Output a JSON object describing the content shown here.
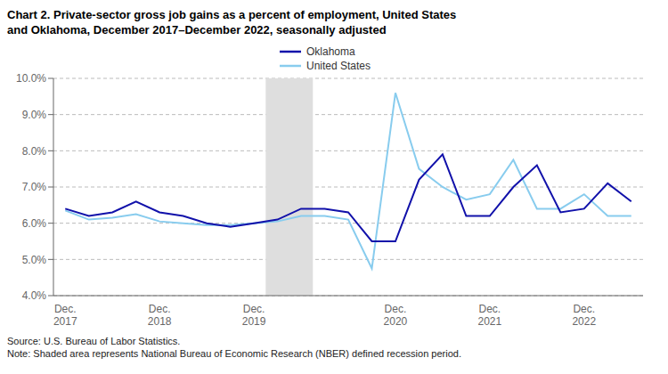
{
  "chart_data": {
    "type": "line",
    "title": "Chart 2. Private-sector gross job gains as a percent of employment, United States\nand Oklahoma, December 2017–December 2022, seasonally adjusted",
    "annotations": [
      "Source: U.S. Bureau of Labor Statistics.\nNote: Shaded area represents National Bureau of Economic Research (NBER) defined recession period."
    ],
    "categories": [
      "Dec.\n2017",
      null,
      null,
      null,
      "Dec.\n2018",
      null,
      null,
      null,
      "Dec.\n2019",
      null,
      null,
      null,
      null,
      null,
      "Dec.\n2020",
      null,
      null,
      null,
      "Dec.\n2021",
      null,
      null,
      null,
      "Dec.\n2022",
      null,
      null
    ],
    "series": [
      {
        "name": "Oklahoma",
        "color": "#1111AA",
        "values": [
          6.4,
          6.2,
          6.3,
          6.6,
          6.3,
          6.2,
          6.0,
          5.9,
          6.0,
          6.1,
          6.4,
          6.4,
          6.3,
          5.5,
          5.5,
          7.2,
          7.9,
          6.2,
          6.2,
          7.0,
          7.6,
          6.3,
          6.4,
          7.1,
          6.6
        ]
      },
      {
        "name": "United States",
        "color": "#88CCEE",
        "values": [
          6.35,
          6.1,
          6.15,
          6.25,
          6.05,
          6.0,
          5.95,
          5.95,
          6.0,
          6.05,
          6.2,
          6.2,
          6.1,
          4.75,
          9.6,
          7.5,
          7.0,
          6.65,
          6.8,
          7.75,
          6.4,
          6.4,
          6.8,
          6.2,
          6.2
        ]
      }
    ],
    "shaded_regions": [
      {
        "from": 8.5,
        "to": 10.5,
        "color": "#DEDEDE"
      }
    ],
    "ylim": [
      4.0,
      10.0
    ],
    "yticks": [
      {
        "value": 4.0,
        "label": "4.0%"
      },
      {
        "value": 5.0,
        "label": "5.0%"
      },
      {
        "value": 6.0,
        "label": "6.0%"
      },
      {
        "value": 7.0,
        "label": "7.0%"
      },
      {
        "value": 8.0,
        "label": "8.0%"
      },
      {
        "value": 9.0,
        "label": "9.0%"
      },
      {
        "value": 10.0,
        "label": "10.0%"
      }
    ],
    "grid": true,
    "legend": "top"
  }
}
